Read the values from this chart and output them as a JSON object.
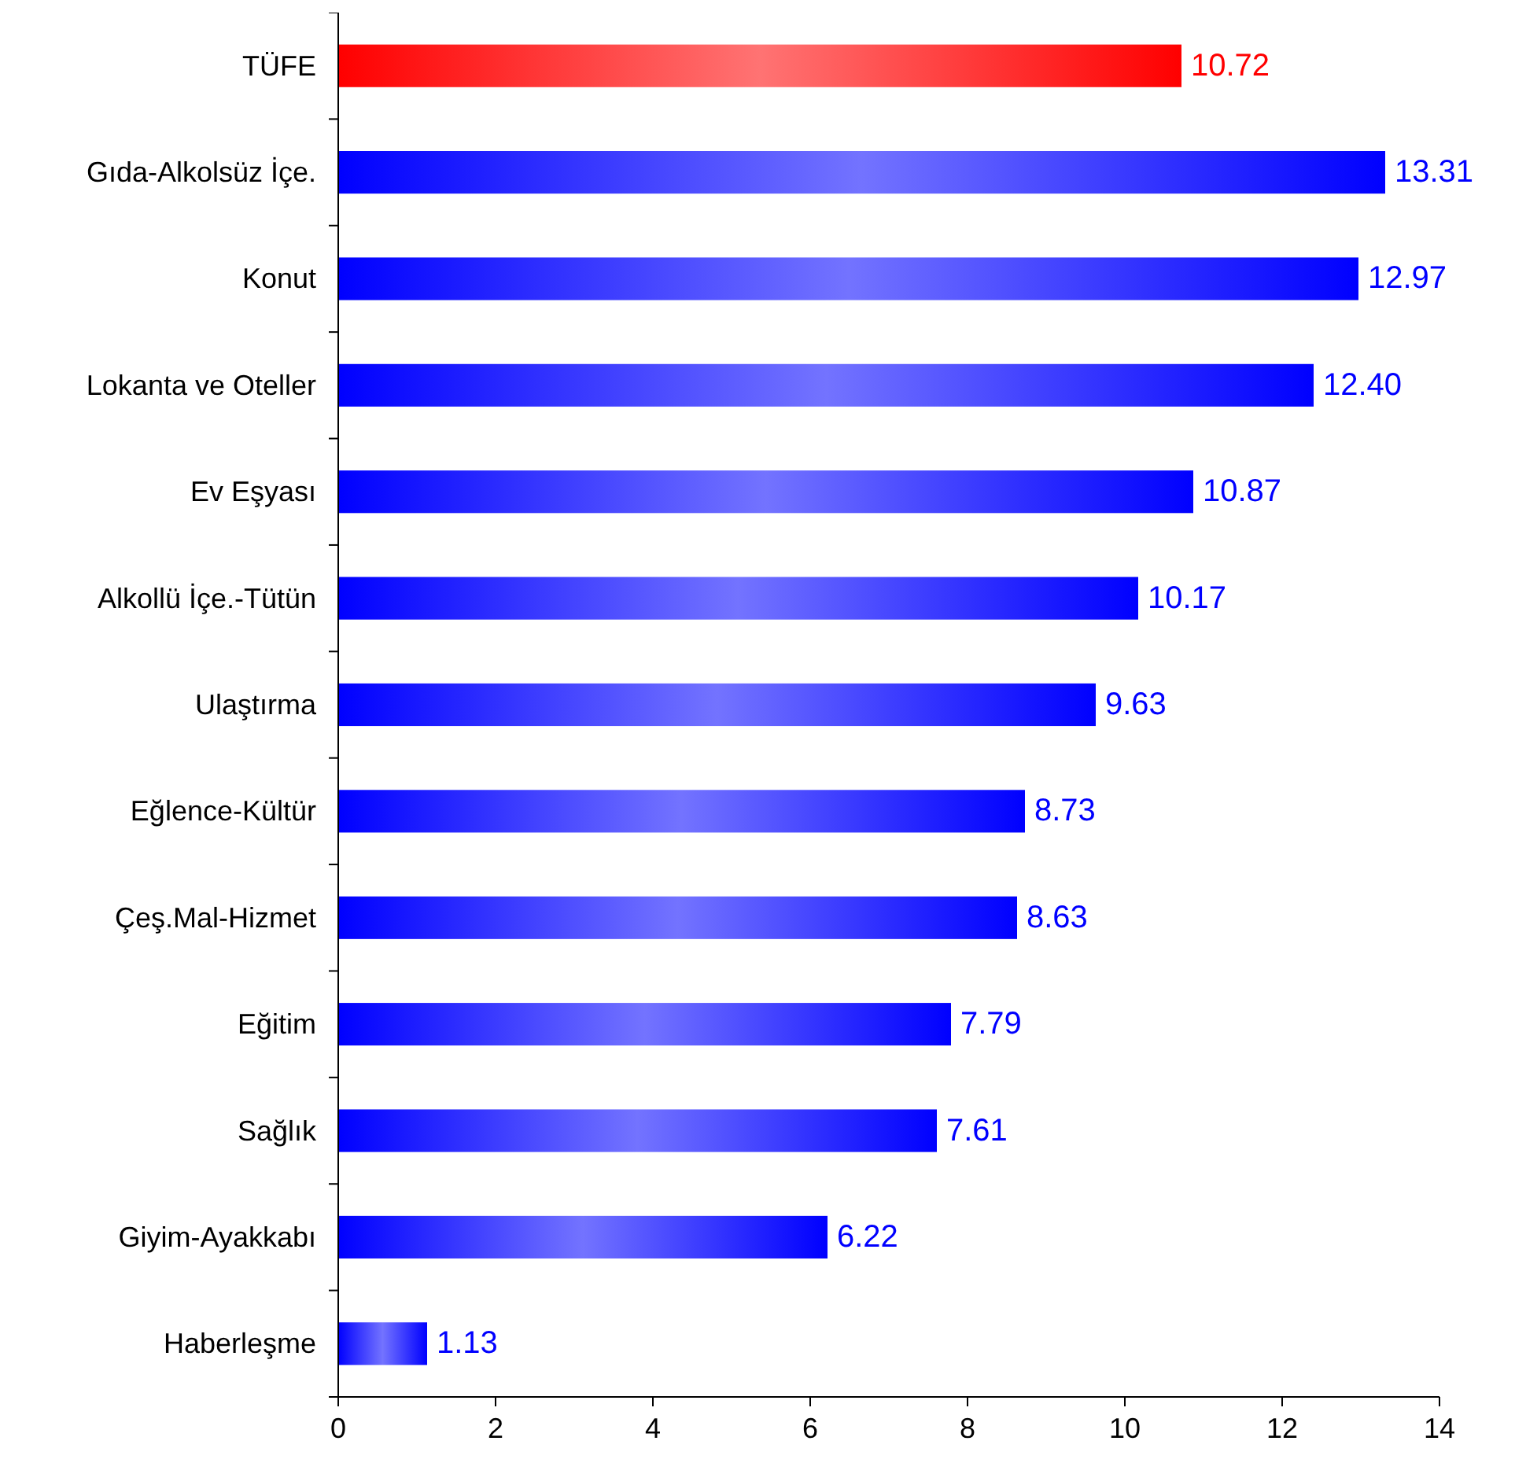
{
  "chart_data": {
    "type": "bar",
    "orientation": "horizontal",
    "categories": [
      "TÜFE",
      "Gıda-Alkolsüz İçe.",
      "Konut",
      "Lokanta ve Oteller",
      "Ev Eşyası",
      "Alkollü İçe.-Tütün",
      "Ulaştırma",
      "Eğlence-Kültür",
      "Çeş.Mal-Hizmet",
      "Eğitim",
      "Sağlık",
      "Giyim-Ayakkabı",
      "Haberleşme"
    ],
    "values": [
      10.72,
      13.31,
      12.97,
      12.4,
      10.87,
      10.17,
      9.63,
      8.73,
      8.63,
      7.79,
      7.61,
      6.22,
      1.13
    ],
    "colors": [
      "#ff0000",
      "#0000ff",
      "#0000ff",
      "#0000ff",
      "#0000ff",
      "#0000ff",
      "#0000ff",
      "#0000ff",
      "#0000ff",
      "#0000ff",
      "#0000ff",
      "#0000ff",
      "#0000ff"
    ],
    "value_labels": [
      "10.72",
      "13.31",
      "12.97",
      "12.40",
      "10.87",
      "10.17",
      "9.63",
      "8.73",
      "8.63",
      "7.79",
      "7.61",
      "6.22",
      "1.13"
    ],
    "xlim": [
      0,
      14
    ],
    "xticks": [
      0,
      2,
      4,
      6,
      8,
      10,
      12,
      14
    ]
  }
}
